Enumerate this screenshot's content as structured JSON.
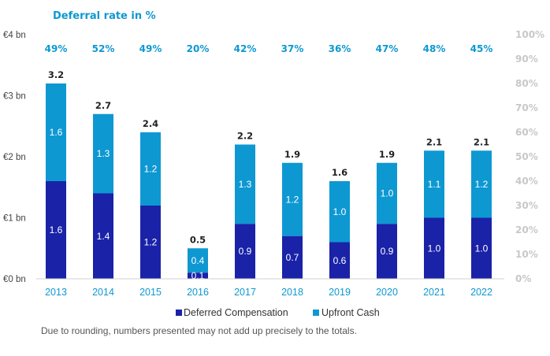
{
  "chart_data": {
    "type": "bar",
    "stacked": true,
    "title": "Deferral rate in %",
    "categories": [
      "2013",
      "2014",
      "2015",
      "2016",
      "2017",
      "2018",
      "2019",
      "2020",
      "2021",
      "2022"
    ],
    "series": [
      {
        "name": "Deferred Compensation",
        "values": [
          1.6,
          1.4,
          1.2,
          0.1,
          0.9,
          0.7,
          0.6,
          0.9,
          1.0,
          1.0
        ],
        "labels": [
          "1.6",
          "1.4",
          "1.2",
          "0.1",
          "0.9",
          "0.7",
          "0.6",
          "0.9",
          "1.0",
          "1.0"
        ],
        "color": "#1a22a8"
      },
      {
        "name": "Upfront Cash",
        "values": [
          1.6,
          1.3,
          1.2,
          0.4,
          1.3,
          1.2,
          1.0,
          1.0,
          1.1,
          1.2
        ],
        "labels": [
          "1.6",
          "1.3",
          "1.2",
          "0.4",
          "1.3",
          "1.2",
          "1.0",
          "1.0",
          "1.1",
          "1.2"
        ],
        "color": "#0e98d2"
      }
    ],
    "totals": [
      "3.2",
      "2.7",
      "2.4",
      "0.5",
      "2.2",
      "1.9",
      "1.6",
      "1.9",
      "2.1",
      "2.1"
    ],
    "total_values": [
      3.2,
      2.7,
      2.4,
      0.5,
      2.2,
      1.9,
      1.6,
      1.9,
      2.1,
      2.1
    ],
    "deferral_rates": [
      "49%",
      "52%",
      "49%",
      "20%",
      "42%",
      "37%",
      "36%",
      "47%",
      "48%",
      "45%"
    ],
    "y_left": {
      "ticks": [
        "€0 bn",
        "€1 bn",
        "€2 bn",
        "€3 bn",
        "€4 bn"
      ],
      "tick_values": [
        0,
        1,
        2,
        3,
        4
      ],
      "ylim": [
        0,
        4
      ]
    },
    "y_right": {
      "ticks": [
        "0%",
        "10%",
        "20%",
        "30%",
        "40%",
        "50%",
        "60%",
        "70%",
        "80%",
        "90%",
        "100%"
      ],
      "tick_values": [
        0,
        10,
        20,
        30,
        40,
        50,
        60,
        70,
        80,
        90,
        100
      ],
      "ylim": [
        0,
        100
      ]
    },
    "xlabel": "",
    "ylabel": "",
    "legend": "bottom-center",
    "grid": false
  },
  "colors": {
    "accent": "#0e98d2",
    "dark_bar": "#1a22a8",
    "light_bar": "#0e98d2",
    "total_text": "#222222",
    "right_axis": "#c8c8c8",
    "left_axis": "#444444"
  },
  "footnote": "Due to rounding, numbers presented may not add up precisely to the totals."
}
